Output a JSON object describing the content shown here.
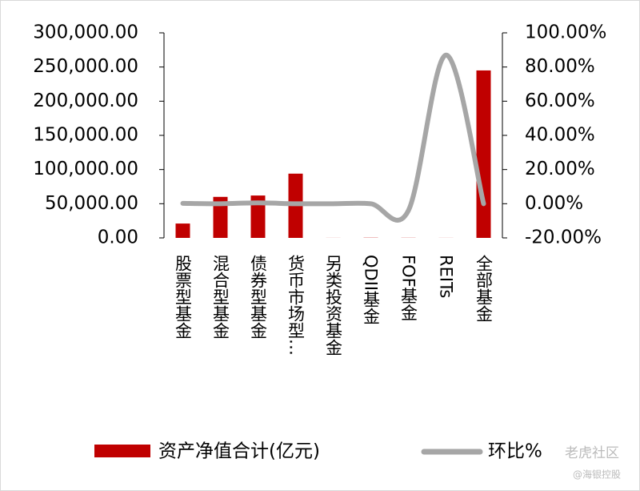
{
  "chart_data": {
    "type": "bar-line",
    "categories": [
      "股票型基金",
      "混合型基金",
      "债券型基金",
      "货币市场型…",
      "另类投资基金",
      "QDII基金",
      "FOF基金",
      "REITs",
      "全部基金"
    ],
    "series": [
      {
        "name": "资产净值合计(亿元)",
        "type": "bar",
        "color": "#c00000",
        "values": [
          21000,
          60000,
          62000,
          94000,
          100,
          300,
          200,
          100,
          245000
        ]
      },
      {
        "name": "环比%",
        "type": "line",
        "axis": "y2",
        "color": "#a6a6a6",
        "values": [
          0.2,
          0,
          0.5,
          0,
          0,
          0,
          -4,
          87,
          0
        ]
      }
    ],
    "ylim": [
      0,
      300000
    ],
    "yticks": [
      {
        "value": 0,
        "label": "0.00"
      },
      {
        "value": 50000,
        "label": "50,000.00"
      },
      {
        "value": 100000,
        "label": "100,000.00"
      },
      {
        "value": 150000,
        "label": "150,000.00"
      },
      {
        "value": 200000,
        "label": "200,000.00"
      },
      {
        "value": 250000,
        "label": "250,000.00"
      },
      {
        "value": 300000,
        "label": "300,000.00"
      }
    ],
    "y2lim": [
      -20,
      100
    ],
    "y2ticks": [
      {
        "value": -20,
        "label": "-20.00%"
      },
      {
        "value": 0,
        "label": "0.00%"
      },
      {
        "value": 20,
        "label": "20.00%"
      },
      {
        "value": 40,
        "label": "40.00%"
      },
      {
        "value": 60,
        "label": "60.00%"
      },
      {
        "value": 80,
        "label": "80.00%"
      },
      {
        "value": 100,
        "label": "100.00%"
      }
    ],
    "legend": "bottom",
    "watermark": [
      "老虎社区",
      "@海银控股"
    ]
  }
}
